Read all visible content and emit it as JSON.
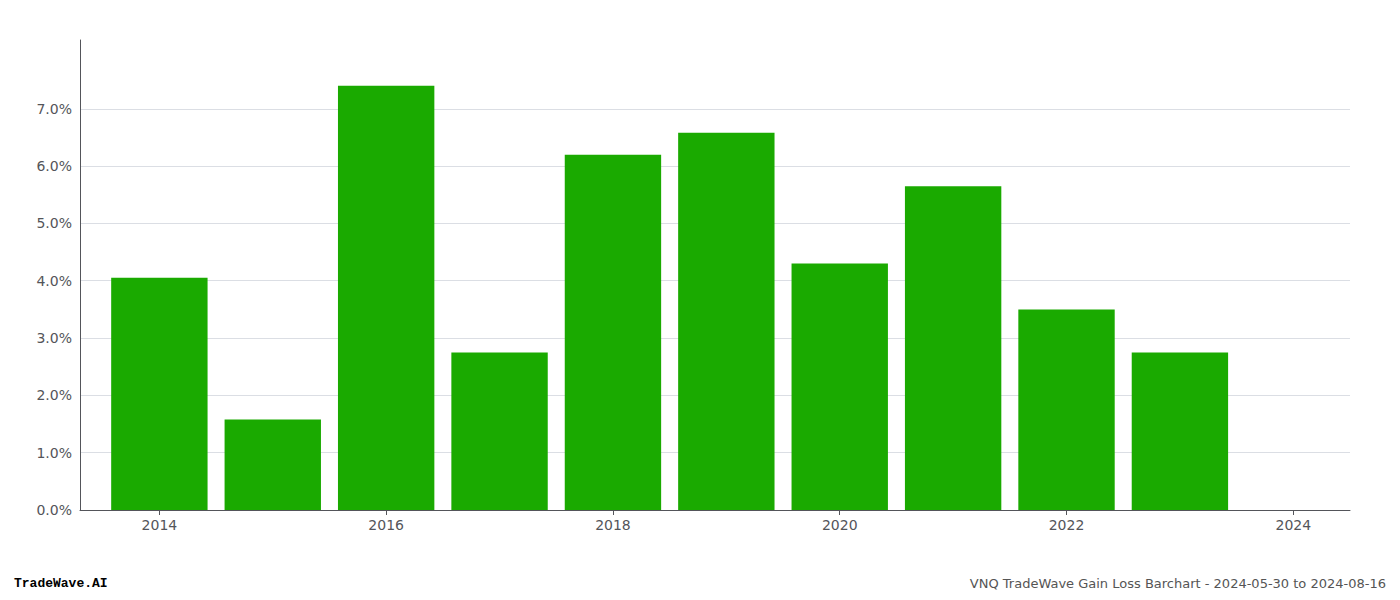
{
  "chart_data": {
    "type": "bar",
    "x": [
      2014,
      2015,
      2016,
      2017,
      2018,
      2019,
      2020,
      2021,
      2022,
      2023
    ],
    "values": [
      0.0405,
      0.0158,
      0.074,
      0.0275,
      0.062,
      0.0658,
      0.043,
      0.0565,
      0.035,
      0.0275
    ],
    "color": "#1aaa00",
    "xlim": [
      2013.3,
      2024.5
    ],
    "xticks": [
      2014,
      2016,
      2018,
      2020,
      2022,
      2024
    ],
    "ylim": [
      0,
      0.082
    ],
    "yticks": [
      {
        "value": 0.0,
        "label": "0.0%"
      },
      {
        "value": 0.01,
        "label": "1.0%"
      },
      {
        "value": 0.02,
        "label": "2.0%"
      },
      {
        "value": 0.03,
        "label": "3.0%"
      },
      {
        "value": 0.04,
        "label": "4.0%"
      },
      {
        "value": 0.05,
        "label": "5.0%"
      },
      {
        "value": 0.06,
        "label": "6.0%"
      },
      {
        "value": 0.07,
        "label": "7.0%"
      }
    ],
    "grid": true,
    "annotations": [
      {
        "text": "TradeWave.AI",
        "color": "#000000"
      },
      {
        "text": "VNQ TradeWave Gain Loss Barchart - 2024-05-30 to 2024-08-16",
        "color": "#555555"
      }
    ]
  }
}
